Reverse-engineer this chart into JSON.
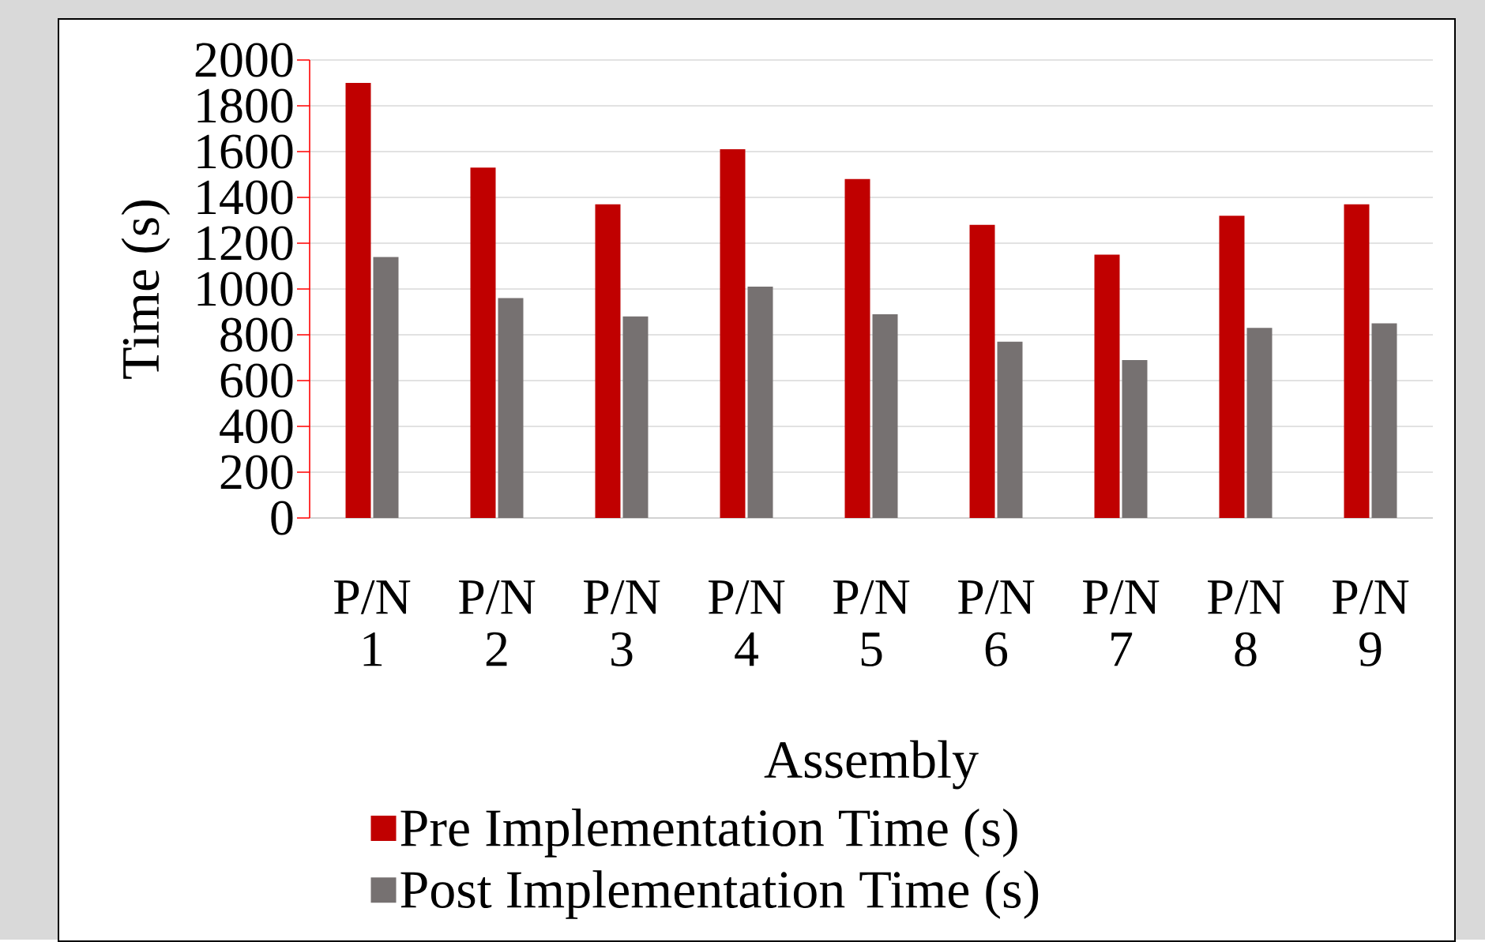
{
  "chart_data": {
    "type": "bar",
    "xlabel": "Assembly",
    "ylabel": "Time (s)",
    "categories": [
      "P/N 1",
      "P/N 2",
      "P/N 3",
      "P/N 4",
      "P/N 5",
      "P/N 6",
      "P/N 7",
      "P/N 8",
      "P/N 9"
    ],
    "series": [
      {
        "name": "Pre Implementation Time (s)",
        "color": "#c00000",
        "values": [
          1900,
          1530,
          1370,
          1610,
          1480,
          1280,
          1150,
          1320,
          1370
        ]
      },
      {
        "name": "Post Implementation Time (s)",
        "color": "#767171",
        "values": [
          1140,
          960,
          880,
          1010,
          890,
          770,
          690,
          830,
          850
        ]
      }
    ],
    "ylim": [
      0,
      2000
    ],
    "yticks": [
      0,
      200,
      400,
      600,
      800,
      1000,
      1200,
      1400,
      1600,
      1800,
      2000
    ],
    "grid": "y",
    "legend": "bottom"
  }
}
